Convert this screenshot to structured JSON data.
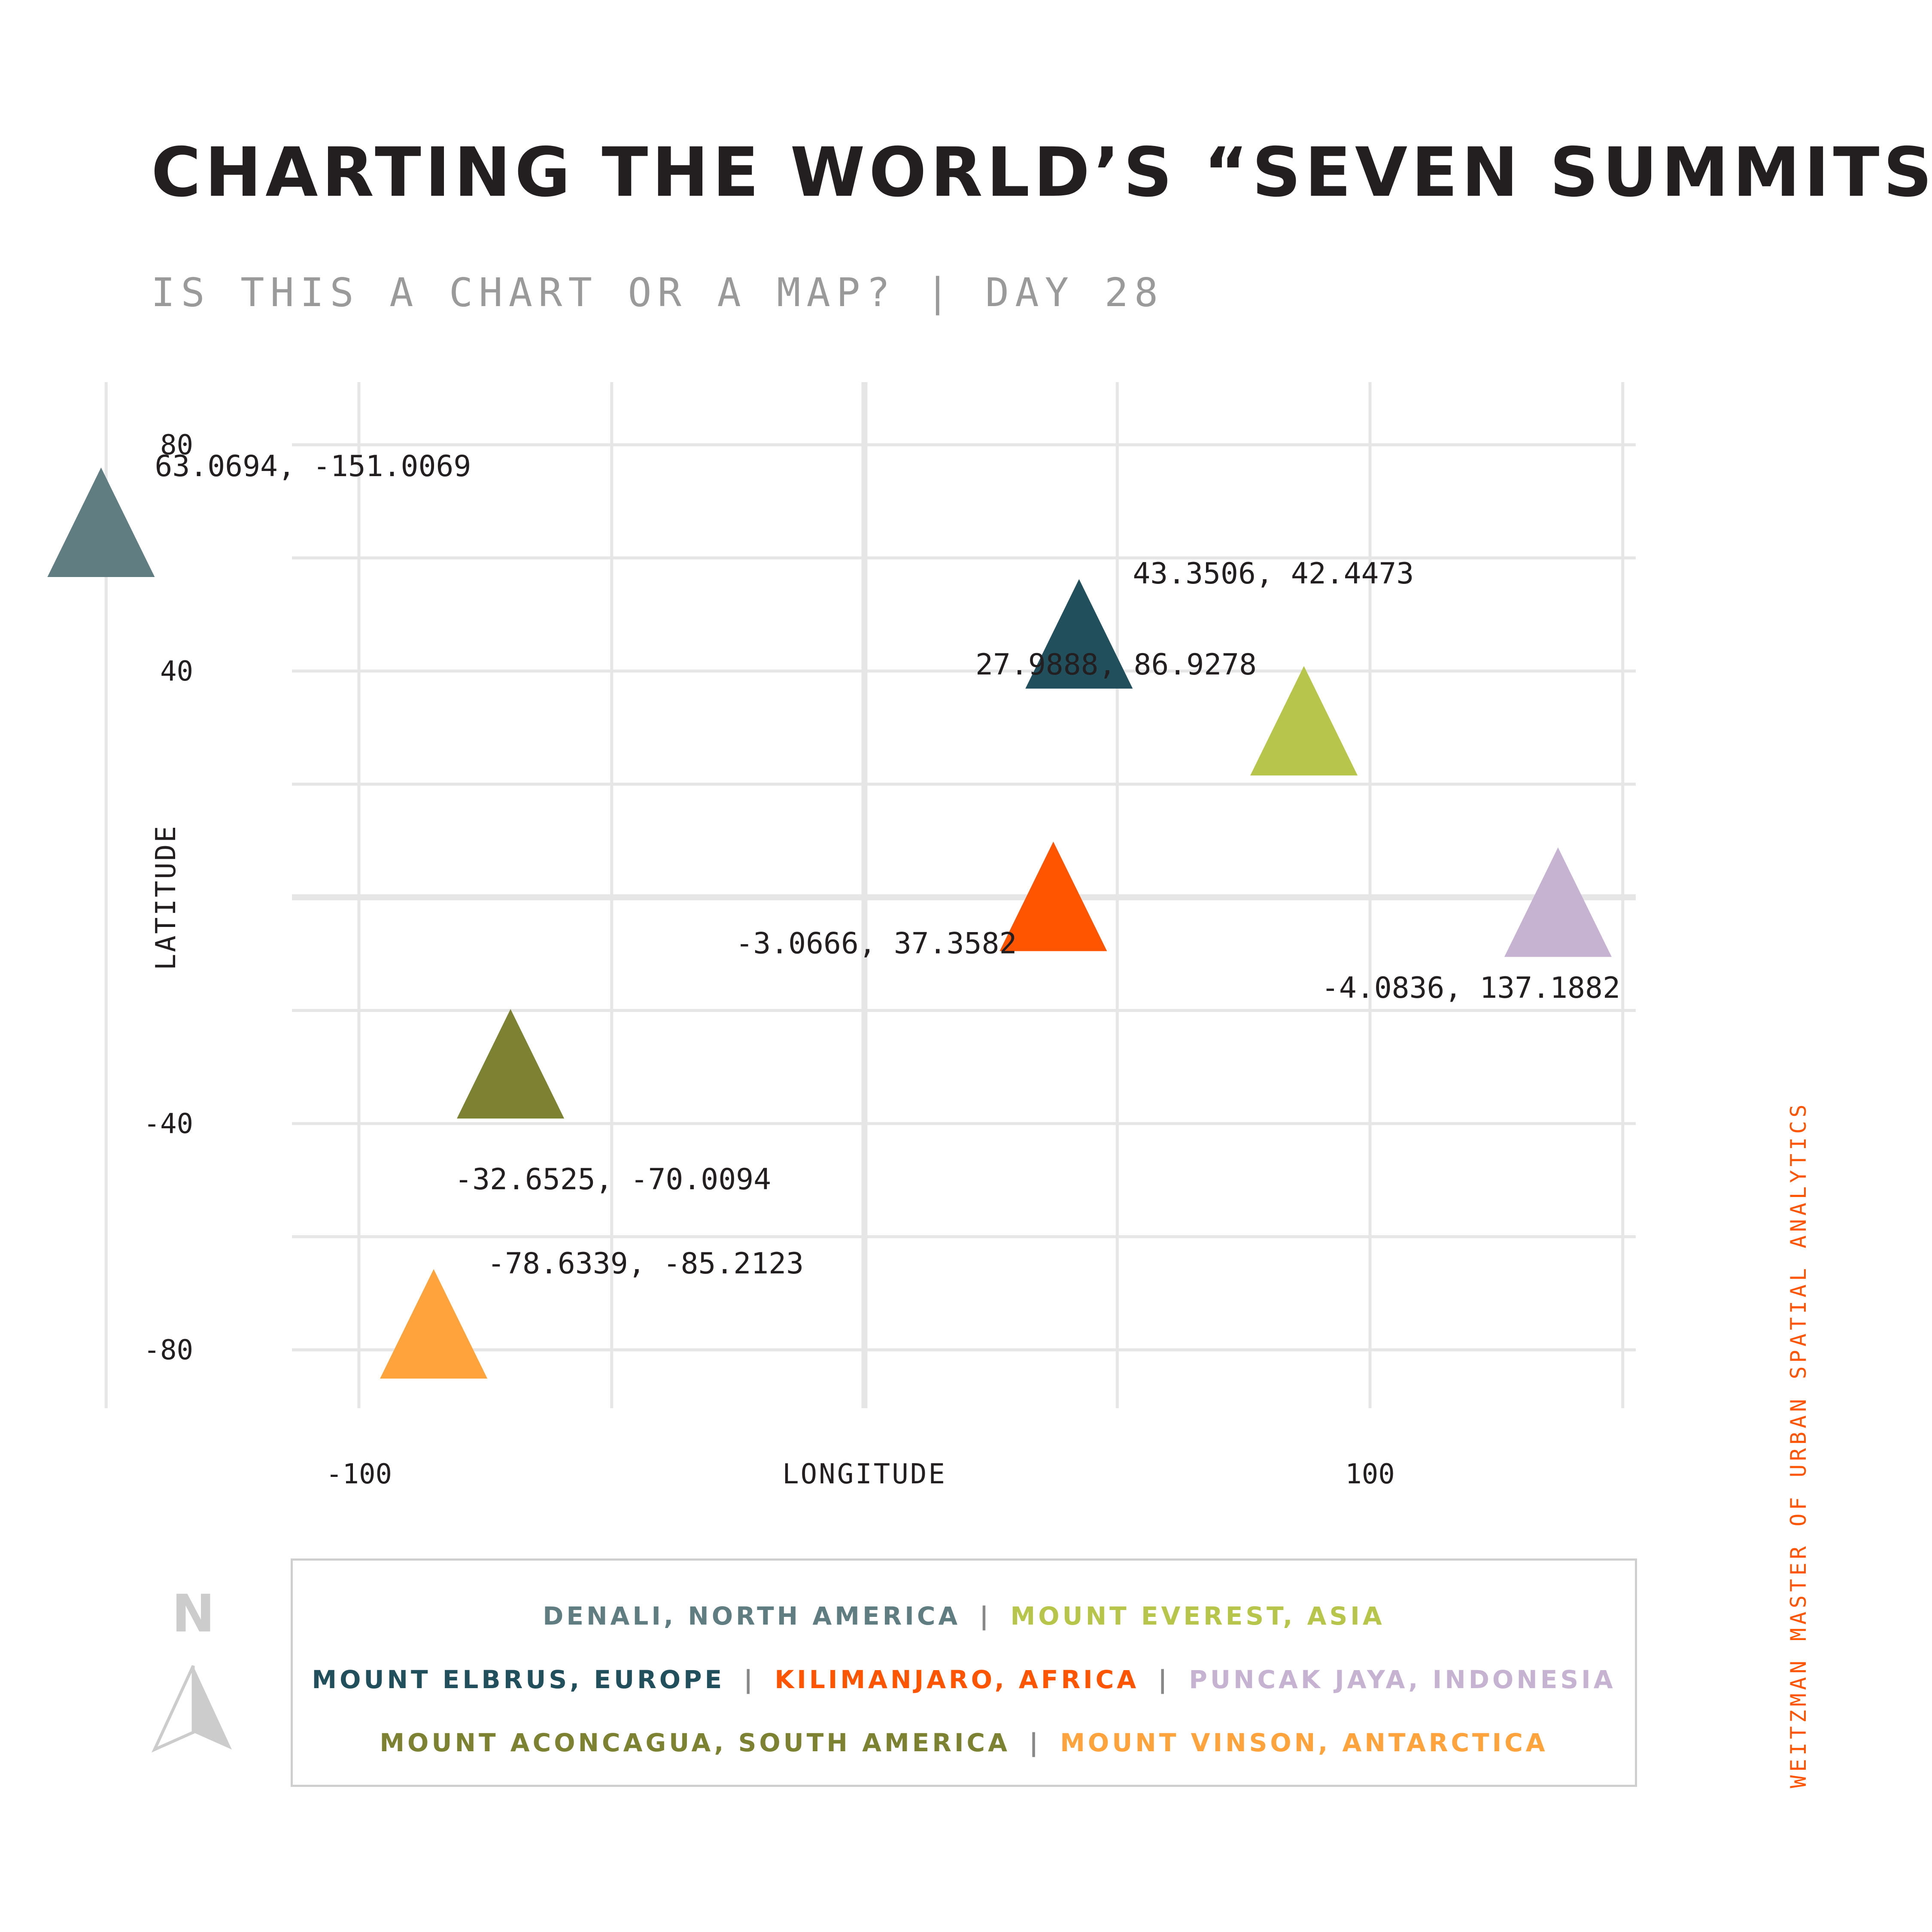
{
  "title": "CHARTING THE WORLD’S “SEVEN SUMMITS”",
  "subtitle": "IS THIS A CHART OR A MAP? | DAY 28",
  "credit": "WEITZMAN MASTER OF URBAN SPATIAL ANALYTICS",
  "north_label": "N",
  "legend": {
    "rows": [
      [
        {
          "label": "DENALI, NORTH AMERICA",
          "color": "#607d82"
        },
        {
          "label": "MOUNT EVEREST, ASIA",
          "color": "#b7c64b"
        }
      ],
      [
        {
          "label": "MOUNT ELBRUS, EUROPE",
          "color": "#21505c"
        },
        {
          "label": "KILIMANJARO, AFRICA",
          "color": "#ff5400"
        },
        {
          "label": "PUNCAK JAYA, INDONESIA",
          "color": "#c6b3d2"
        }
      ],
      [
        {
          "label": "MOUNT ACONCAGUA, SOUTH AMERICA",
          "color": "#7c8232"
        },
        {
          "label": "MOUNT VINSON, ANTARCTICA",
          "color": "#ffa33d"
        }
      ]
    ],
    "separator": "|"
  },
  "chart_data": {
    "type": "scatter",
    "marker": "triangle",
    "xlabel": "LONGITUDE",
    "ylabel": "LATITUDE",
    "xlim": [
      -150,
      150
    ],
    "ylim": [
      -90,
      90
    ],
    "xticks": [
      -100,
      100
    ],
    "yticks": [
      80,
      40,
      -40,
      -80
    ],
    "grid": true,
    "points": [
      {
        "name": "Denali",
        "lat": 63.0694,
        "lon": -151.0069,
        "label": "63.0694, -151.0069",
        "color": "#607d82",
        "label_pos": "right"
      },
      {
        "name": "Mount Everest",
        "lat": 27.9888,
        "lon": 86.9278,
        "label": "27.9888, 86.9278",
        "color": "#b7c64b",
        "label_pos": "left"
      },
      {
        "name": "Mount Elbrus",
        "lat": 43.3506,
        "lon": 42.4473,
        "label": "43.3506, 42.4473",
        "color": "#21505c",
        "label_pos": "right"
      },
      {
        "name": "Kilimanjaro",
        "lat": -3.0666,
        "lon": 37.3582,
        "label": "-3.0666, 37.3582",
        "color": "#ff5400",
        "label_pos": "left"
      },
      {
        "name": "Puncak Jaya",
        "lat": -4.0836,
        "lon": 137.1882,
        "label": "-4.0836, 137.1882",
        "color": "#c6b3d2",
        "label_pos": "below-left"
      },
      {
        "name": "Mount Aconcagua",
        "lat": -32.6525,
        "lon": -70.0094,
        "label": "-32.6525, -70.0094",
        "color": "#7c8232",
        "label_pos": "below"
      },
      {
        "name": "Mount Vinson",
        "lat": -78.6339,
        "lon": -85.2123,
        "label": "-78.6339, -85.2123",
        "color": "#ffa33d",
        "label_pos": "right"
      }
    ]
  }
}
